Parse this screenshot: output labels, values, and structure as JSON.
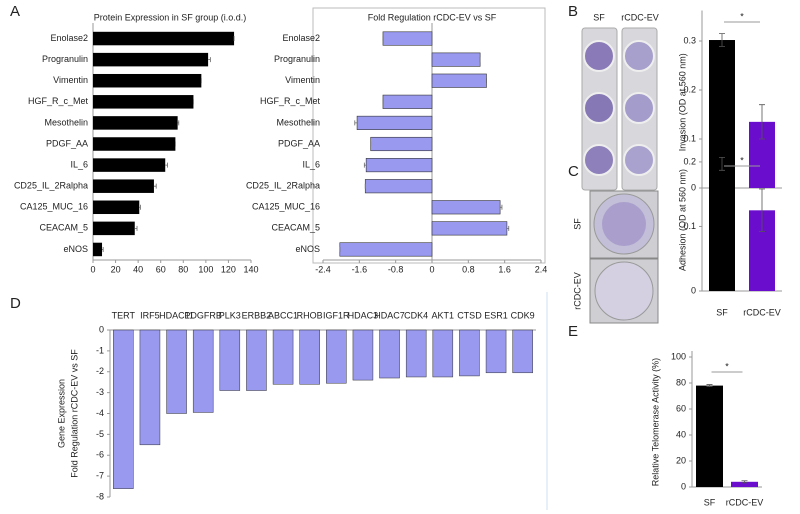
{
  "chart_data": [
    {
      "type": "hbar",
      "panel": "A",
      "title": "Protein Expression in SF group (i.o.d.)",
      "categories": [
        "Enolase2",
        "Progranulin",
        "Vimentin",
        "HGF_R_c_Met",
        "Mesothelin",
        "PDGF_AA",
        "IL_6",
        "CD25_IL_2Ralpha",
        "CA125_MUC_16",
        "CEACAM_5",
        "eNOS"
      ],
      "values": [
        125,
        102,
        96,
        89,
        75,
        73,
        64,
        54,
        41,
        37,
        8
      ],
      "errors": [
        0,
        2,
        0,
        0,
        1,
        0,
        2,
        2,
        1,
        2,
        1
      ],
      "colors": [
        "#000000"
      ],
      "xlim": [
        0,
        140
      ],
      "xticks": [
        0,
        20,
        40,
        60,
        80,
        100,
        120,
        140
      ]
    },
    {
      "type": "hbar",
      "title": "Fold Regulation rCDC-EV vs SF",
      "categories": [
        "Enolase2",
        "Progranulin",
        "Vimentin",
        "HGF_R_c_Met",
        "Mesothelin",
        "PDGF_AA",
        "IL_6",
        "CD25_IL_2Ralpha",
        "CA125_MUC_16",
        "CEACAM_5",
        "eNOS"
      ],
      "values": [
        -1.08,
        1.06,
        1.2,
        -1.08,
        -1.65,
        -1.35,
        -1.45,
        -1.47,
        1.5,
        1.65,
        -2.03
      ],
      "errors": [
        0,
        0,
        0,
        0,
        0.05,
        0,
        0.04,
        0,
        0.04,
        0.04,
        0
      ],
      "colors": [
        "#9999f0"
      ],
      "xlim": [
        -2.4,
        2.4
      ],
      "xticks": [
        -2.4,
        -1.6,
        -0.8,
        0,
        0.8,
        1.6,
        2.4
      ]
    },
    {
      "type": "bar",
      "panel": "B",
      "image_labels": [
        "SF",
        "rCDC-EV"
      ],
      "significance": "*",
      "ylabel": "Invasion (OD at 560 nm)",
      "values": [
        0.302,
        0.135
      ],
      "errors": [
        0.013,
        0.035
      ],
      "colors": [
        "#000000",
        "#6a0dcc"
      ],
      "ylim": [
        0,
        0.35
      ],
      "yticks": [
        0,
        0.1,
        0.2,
        0.3
      ]
    },
    {
      "type": "bar",
      "panel": "C",
      "image_labels": [
        "SF",
        "rCDC-EV"
      ],
      "significance": "*",
      "ylabel": "Adhesion (OD at 560 nm)",
      "categories": [
        "SF",
        "rCDC-EV"
      ],
      "values": [
        0.197,
        0.125
      ],
      "errors": [
        0.01,
        0.033
      ],
      "colors": [
        "#000000",
        "#6a0dcc"
      ],
      "ylim": [
        0,
        0.22
      ],
      "yticks": [
        0,
        0.1,
        0.2
      ]
    },
    {
      "type": "bar",
      "panel": "D",
      "ylabel": [
        "Gene Expression",
        "Fold Regulation rCDC-EV vs SF"
      ],
      "categories": [
        "TERT",
        "IRF5",
        "HDAC11",
        "PDGFRB",
        "PLK3",
        "ERBB2",
        "ABCC1",
        "RHOB",
        "IGF1R",
        "HDAC3",
        "HDAC7",
        "CDK4",
        "AKT1",
        "CTSD",
        "ESR1",
        "CDK9"
      ],
      "values": [
        -7.6,
        -5.5,
        -4.0,
        -3.95,
        -2.9,
        -2.9,
        -2.6,
        -2.6,
        -2.55,
        -2.4,
        -2.3,
        -2.25,
        -2.25,
        -2.2,
        -2.05,
        -2.05
      ],
      "colors": [
        "#9999f0"
      ],
      "ylim": [
        -8,
        0
      ],
      "yticks": [
        0,
        -1,
        -2,
        -3,
        -4,
        -5,
        -6,
        -7,
        -8
      ]
    },
    {
      "type": "bar",
      "panel": "E",
      "significance": "*",
      "ylabel": "Relative Telomerase Activity (%)",
      "categories": [
        "SF",
        "rCDC-EV"
      ],
      "values": [
        78,
        4
      ],
      "errors": [
        0.8,
        0.8
      ],
      "colors": [
        "#000000",
        "#6a0dcc"
      ],
      "ylim": [
        0,
        100
      ],
      "yticks": [
        0,
        20,
        40,
        60,
        80,
        100
      ]
    }
  ]
}
